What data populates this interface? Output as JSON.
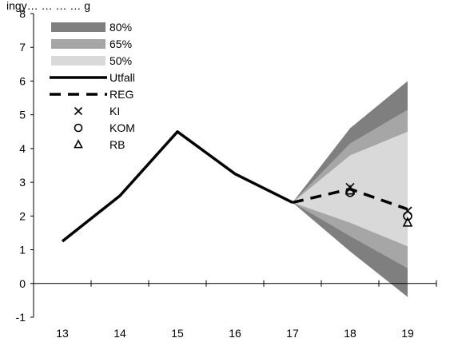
{
  "top_text": "ingy… … … … g",
  "chart_data": {
    "type": "line",
    "title": "",
    "xlabel": "",
    "ylabel": "",
    "x": [
      13,
      14,
      15,
      16,
      17,
      18,
      19
    ],
    "ylim": [
      -1,
      8
    ],
    "xlim": [
      12.5,
      19.5
    ],
    "yticks": [
      -1,
      0,
      1,
      2,
      3,
      4,
      5,
      6,
      7,
      8
    ],
    "xticks": [
      13,
      14,
      15,
      16,
      17,
      18,
      19
    ],
    "grid": false,
    "legend_position": "top-left",
    "fan_bands": [
      {
        "name": "80%",
        "color": "#7f7f7f",
        "x": [
          17,
          18,
          19
        ],
        "upper": [
          2.4,
          4.6,
          6.0
        ],
        "lower": [
          2.4,
          0.95,
          -0.4
        ]
      },
      {
        "name": "65%",
        "color": "#a6a6a6",
        "x": [
          17,
          18,
          19
        ],
        "upper": [
          2.4,
          4.15,
          5.15
        ],
        "lower": [
          2.4,
          1.4,
          0.45
        ]
      },
      {
        "name": "50%",
        "color": "#d9d9d9",
        "x": [
          17,
          18,
          19
        ],
        "upper": [
          2.4,
          3.8,
          4.5
        ],
        "lower": [
          2.4,
          1.8,
          1.1
        ]
      }
    ],
    "series": [
      {
        "name": "Utfall",
        "style": "solid",
        "color": "#000000",
        "x": [
          13,
          14,
          15,
          16,
          17
        ],
        "y": [
          1.25,
          2.6,
          4.5,
          3.25,
          2.4
        ]
      },
      {
        "name": "REG",
        "style": "dashed",
        "color": "#000000",
        "x": [
          17,
          18,
          19
        ],
        "y": [
          2.4,
          2.8,
          2.2
        ]
      }
    ],
    "markers": [
      {
        "name": "KI",
        "symbol": "x",
        "x": [
          18,
          19
        ],
        "y": [
          2.85,
          2.15
        ]
      },
      {
        "name": "KOM",
        "symbol": "circle",
        "x": [
          18,
          19
        ],
        "y": [
          2.7,
          2.0
        ]
      },
      {
        "name": "RB",
        "symbol": "triangle",
        "x": [
          18,
          19
        ],
        "y": [
          2.75,
          1.8
        ]
      }
    ]
  }
}
